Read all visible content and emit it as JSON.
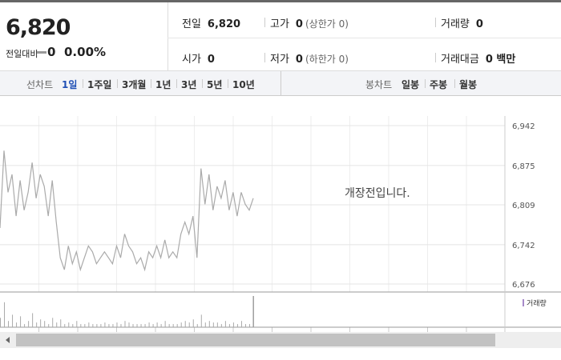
{
  "header": {
    "price": "6,820",
    "change_label": "전일대비",
    "change": "0",
    "change_rate": "0.00%"
  },
  "summary": {
    "rows": [
      [
        {
          "label": "전일",
          "value": "6,820"
        },
        {
          "label": "고가",
          "value": "0",
          "note": "(상한가 0)"
        },
        {
          "label": "거래량",
          "value": "0"
        }
      ],
      [
        {
          "label": "시가",
          "value": "0"
        },
        {
          "label": "저가",
          "value": "0",
          "note": "(하한가 0)"
        },
        {
          "label": "거래대금",
          "value": "0 백만"
        }
      ]
    ]
  },
  "tabs": {
    "line_label": "선차트",
    "line_periods": [
      "1일",
      "1주일",
      "3개월",
      "1년",
      "3년",
      "5년",
      "10년"
    ],
    "candle_label": "봉차트",
    "candle_periods": [
      "일봉",
      "주봉",
      "월봉"
    ]
  },
  "chart_data": {
    "type": "line",
    "annotation": "개장전입니다.",
    "volume_label": "거래량",
    "color": "#aaaaaa",
    "grid": true,
    "values": [
      6770,
      6900,
      6830,
      6860,
      6790,
      6850,
      6800,
      6830,
      6880,
      6820,
      6860,
      6840,
      6790,
      6850,
      6780,
      6720,
      6700,
      6740,
      6710,
      6730,
      6700,
      6720,
      6740,
      6730,
      6710,
      6720,
      6730,
      6720,
      6710,
      6740,
      6720,
      6760,
      6740,
      6730,
      6710,
      6720,
      6700,
      6730,
      6720,
      6740,
      6720,
      6750,
      6720,
      6730,
      6720,
      6760,
      6780,
      6760,
      6790,
      6720,
      6870,
      6810,
      6860,
      6800,
      6840,
      6820,
      6850,
      6800,
      6830,
      6790,
      6830,
      6810,
      6800,
      6820
    ],
    "volume": [
      30,
      80,
      20,
      40,
      15,
      35,
      10,
      20,
      45,
      15,
      25,
      20,
      10,
      30,
      15,
      25,
      10,
      15,
      10,
      20,
      10,
      10,
      15,
      10,
      10,
      10,
      15,
      10,
      10,
      15,
      10,
      20,
      15,
      10,
      10,
      10,
      10,
      15,
      10,
      15,
      10,
      20,
      10,
      10,
      10,
      15,
      20,
      15,
      25,
      10,
      40,
      15,
      20,
      15,
      15,
      10,
      20,
      10,
      15,
      10,
      20,
      10,
      10,
      100
    ],
    "ylim": [
      6676,
      6942
    ],
    "yticks": [
      {
        "value": 6676,
        "label": "6,676"
      },
      {
        "value": 6742,
        "label": "6,742"
      },
      {
        "value": 6809,
        "label": "6,809"
      },
      {
        "value": 6875,
        "label": "6,875"
      },
      {
        "value": 6942,
        "label": "6,942"
      }
    ]
  }
}
